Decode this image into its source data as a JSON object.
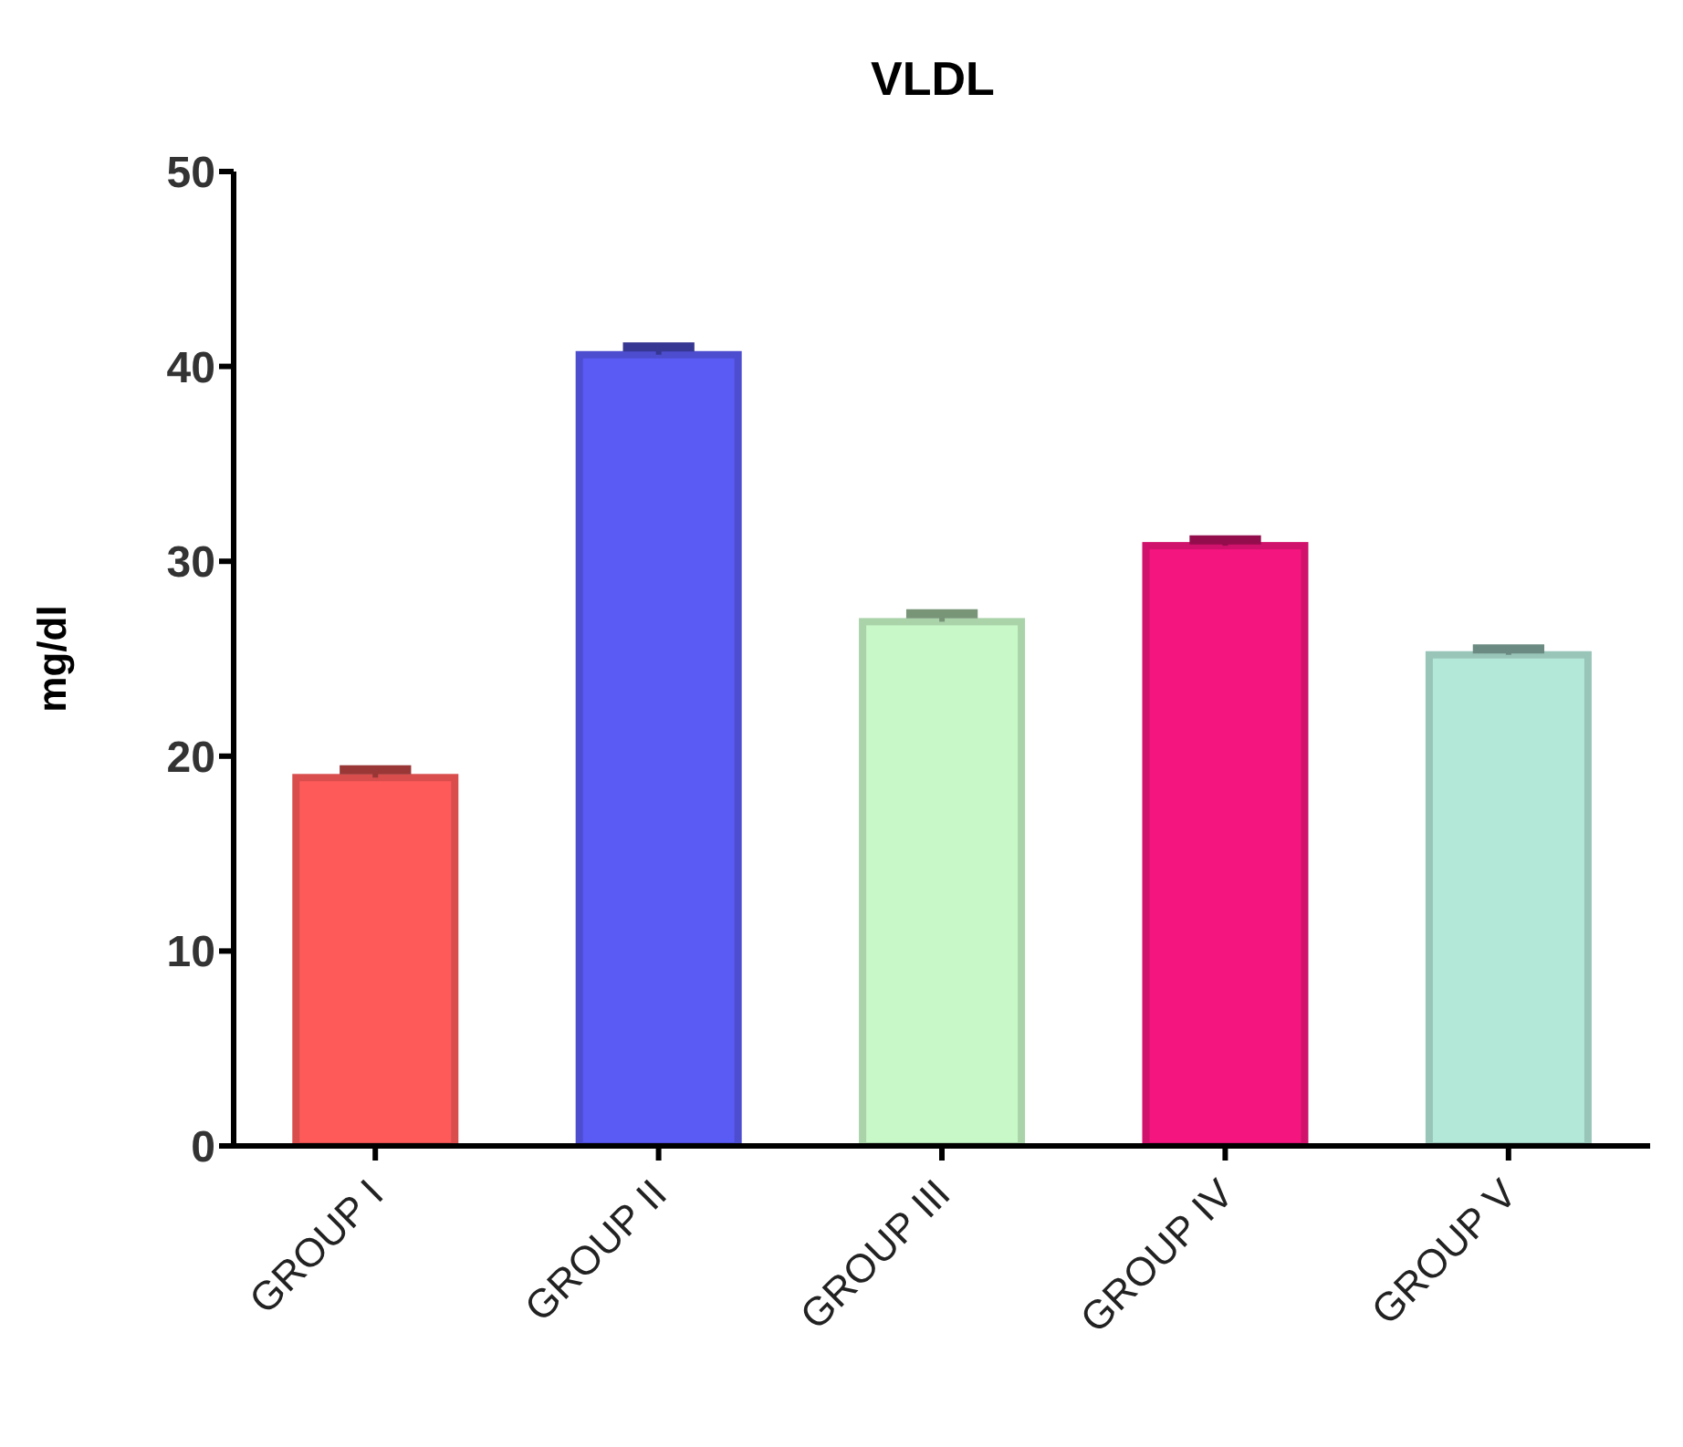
{
  "chart_data": {
    "type": "bar",
    "title": "VLDL",
    "ylabel": "mg/dl",
    "categories": [
      "GROUP I",
      "GROUP II",
      "GROUP III",
      "GROUP IV",
      "GROUP V"
    ],
    "values": [
      18.9,
      40.6,
      26.9,
      30.8,
      25.2
    ],
    "errors": [
      0.4,
      0.4,
      0.4,
      0.3,
      0.3
    ],
    "colors": [
      "#ff5a5a",
      "#5a5af5",
      "#c8f8c8",
      "#f5157f",
      "#b3e8d8"
    ],
    "ylim": [
      0,
      50
    ],
    "yticks": [
      0,
      10,
      20,
      30,
      40,
      50
    ],
    "grid": false,
    "legend": false
  }
}
